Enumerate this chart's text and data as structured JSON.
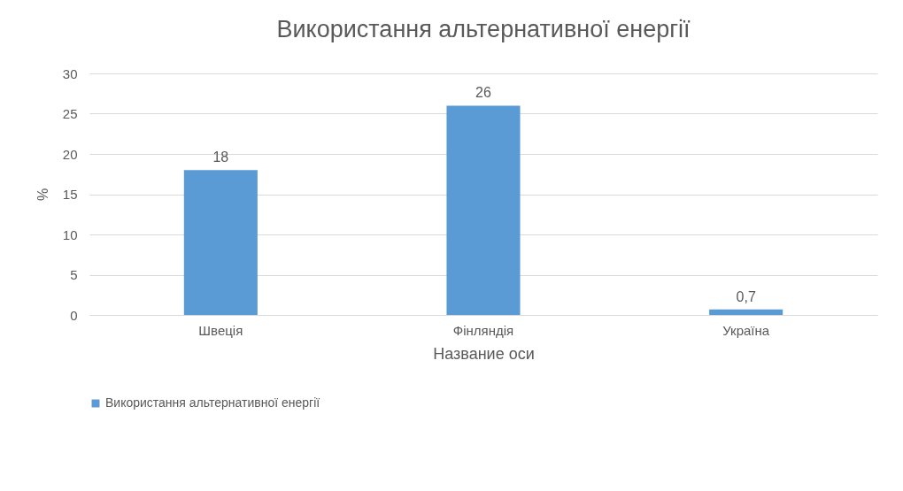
{
  "chart_data": {
    "type": "bar",
    "title": "Використання альтернативної енергії",
    "xlabel": "Название оси",
    "ylabel": "%",
    "categories": [
      "Швеція",
      "Фінляндія",
      "Україна"
    ],
    "series": [
      {
        "name": "Використання альтернативної енергії",
        "color": "#5b9bd5",
        "values": [
          18,
          26,
          0.7
        ],
        "value_labels": [
          "18",
          "26",
          "0,7"
        ]
      }
    ],
    "ylim": [
      0,
      30
    ],
    "yticks": [
      0,
      5,
      10,
      15,
      20,
      25,
      30
    ],
    "grid": "y",
    "legend": "bottom"
  }
}
